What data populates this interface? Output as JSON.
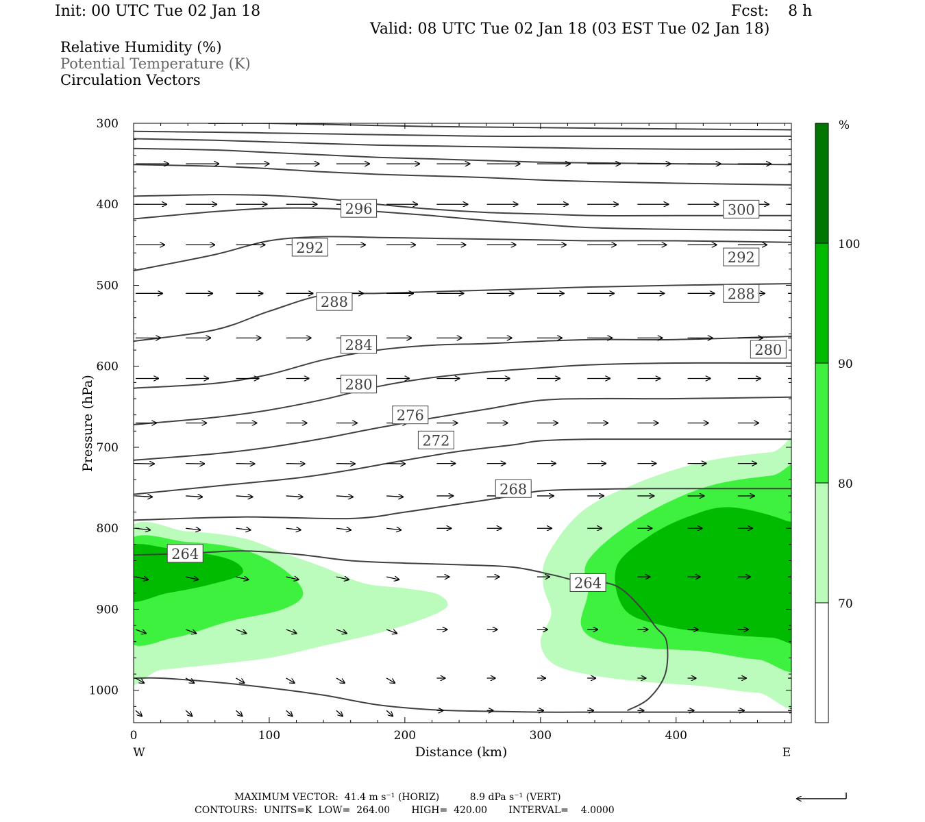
{
  "header": {
    "init": "Init: 00 UTC Tue 02 Jan 18",
    "fcst": "Fcst:    8 h",
    "valid": "Valid: 08 UTC Tue 02 Jan 18 (03 EST Tue 02 Jan 18)"
  },
  "fields": {
    "f1": "Relative Humidity (%)",
    "f2": "Potential Temperature (K)",
    "f3": "Circulation Vectors"
  },
  "footer": {
    "line1": "MAXIMUM VECTOR:  41.4 m s⁻¹ (HORIZ)          8.9 dPa s⁻¹ (VERT)",
    "line2": "CONTOURS:  UNITS=K  LOW=  264.00       HIGH=  420.00       INTERVAL=    4.0000"
  },
  "chart_data": {
    "type": "cross-section",
    "xlabel": "Distance (km)",
    "ylabel": "Pressure (hPa)",
    "xlim": [
      0,
      485
    ],
    "ylim": [
      1040,
      300
    ],
    "y_scale": "linear pressure (inverted)",
    "x_ticks": [
      0,
      100,
      200,
      300,
      400
    ],
    "y_ticks": [
      300,
      400,
      500,
      600,
      700,
      800,
      900,
      1000
    ],
    "x_end_labels": {
      "left": "W",
      "right": "E"
    },
    "colorbar": {
      "unit": "%",
      "levels": [
        70,
        80,
        90,
        100
      ],
      "colors": [
        "#ffffff",
        "#bbfbbb",
        "#3ef13e",
        "#00bb00",
        "#007700"
      ]
    },
    "theta_contours": [
      {
        "value": 264,
        "labels": [
          [
            38,
            831
          ],
          [
            335,
            867
          ]
        ],
        "points": [
          [
            0,
            833
          ],
          [
            40,
            831
          ],
          [
            80,
            828
          ],
          [
            120,
            832
          ],
          [
            160,
            840
          ],
          [
            200,
            843
          ],
          [
            240,
            845
          ],
          [
            280,
            848
          ],
          [
            310,
            858
          ],
          [
            330,
            866
          ],
          [
            350,
            868
          ],
          [
            362,
            878
          ],
          [
            375,
            900
          ],
          [
            385,
            922
          ],
          [
            393,
            940
          ],
          [
            392,
            980
          ],
          [
            380,
            1010
          ],
          [
            364,
            1025
          ]
        ]
      },
      {
        "value": 264,
        "points": [
          [
            0,
            985
          ],
          [
            20,
            985
          ],
          [
            60,
            990
          ],
          [
            100,
            997
          ],
          [
            140,
            1006
          ],
          [
            180,
            1018
          ],
          [
            220,
            1024
          ],
          [
            260,
            1026
          ],
          [
            300,
            1027
          ],
          [
            340,
            1027
          ],
          [
            380,
            1027
          ],
          [
            420,
            1027
          ],
          [
            485,
            1027
          ]
        ]
      },
      {
        "value": null,
        "points": [
          [
            0,
            790
          ],
          [
            80,
            786
          ],
          [
            160,
            788
          ],
          [
            200,
            780
          ],
          [
            240,
            770
          ],
          [
            280,
            760
          ],
          [
            300,
            754
          ],
          [
            330,
            752
          ],
          [
            380,
            751
          ],
          [
            420,
            751
          ],
          [
            485,
            751
          ]
        ]
      },
      {
        "value": 268,
        "labels": [
          [
            280,
            751
          ]
        ],
        "points": [
          [
            0,
            758
          ],
          [
            60,
            748
          ],
          [
            120,
            738
          ],
          [
            160,
            728
          ],
          [
            200,
            716
          ],
          [
            240,
            705
          ],
          [
            280,
            697
          ],
          [
            300,
            692
          ],
          [
            340,
            690
          ],
          [
            400,
            690
          ],
          [
            485,
            690
          ]
        ]
      },
      {
        "value": 272,
        "labels": [
          [
            223,
            691
          ]
        ],
        "points": [
          [
            0,
            716
          ],
          [
            60,
            708
          ],
          [
            100,
            700
          ],
          [
            140,
            689
          ],
          [
            180,
            676
          ],
          [
            220,
            664
          ],
          [
            260,
            653
          ],
          [
            300,
            642
          ],
          [
            340,
            640
          ],
          [
            400,
            640
          ],
          [
            485,
            638
          ]
        ]
      },
      {
        "value": 276,
        "labels": [
          [
            204,
            660
          ]
        ],
        "points": [
          [
            0,
            672
          ],
          [
            60,
            663
          ],
          [
            100,
            654
          ],
          [
            140,
            641
          ],
          [
            180,
            625
          ],
          [
            220,
            614
          ],
          [
            260,
            607
          ],
          [
            300,
            602
          ],
          [
            340,
            598
          ],
          [
            400,
            596
          ],
          [
            485,
            596
          ]
        ]
      },
      {
        "value": 280,
        "labels": [
          [
            166,
            622
          ],
          [
            468,
            579
          ]
        ],
        "points": [
          [
            0,
            627
          ],
          [
            60,
            621
          ],
          [
            100,
            610
          ],
          [
            140,
            592
          ],
          [
            180,
            580
          ],
          [
            220,
            574
          ],
          [
            260,
            572
          ],
          [
            300,
            569
          ],
          [
            340,
            567
          ],
          [
            400,
            567
          ],
          [
            485,
            563
          ]
        ]
      },
      {
        "value": 284,
        "labels": [
          [
            166,
            573
          ]
        ],
        "points": [
          [
            0,
            569
          ],
          [
            60,
            555
          ],
          [
            100,
            532
          ],
          [
            140,
            512
          ],
          [
            180,
            510
          ],
          [
            220,
            508
          ],
          [
            260,
            506
          ],
          [
            300,
            504
          ],
          [
            340,
            502
          ],
          [
            400,
            500
          ],
          [
            485,
            498
          ]
        ]
      },
      {
        "value": 288,
        "labels": [
          [
            148,
            520
          ],
          [
            448,
            510
          ]
        ],
        "points": [
          [
            0,
            482
          ],
          [
            60,
            462
          ],
          [
            100,
            445
          ],
          [
            140,
            440
          ],
          [
            180,
            441
          ],
          [
            220,
            442
          ],
          [
            260,
            443
          ],
          [
            300,
            444
          ],
          [
            340,
            445
          ],
          [
            400,
            445
          ],
          [
            485,
            447
          ]
        ]
      },
      {
        "value": 292,
        "labels": [
          [
            130,
            453
          ],
          [
            448,
            465
          ]
        ],
        "points": [
          [
            0,
            418
          ],
          [
            60,
            409
          ],
          [
            100,
            405
          ],
          [
            140,
            405
          ],
          [
            180,
            409
          ],
          [
            220,
            414
          ],
          [
            260,
            420
          ],
          [
            300,
            425
          ],
          [
            340,
            429
          ],
          [
            400,
            431
          ],
          [
            485,
            432
          ]
        ]
      },
      {
        "value": 296,
        "labels": [
          [
            166,
            405
          ]
        ],
        "points": [
          [
            0,
            390
          ],
          [
            60,
            388
          ],
          [
            100,
            389
          ],
          [
            140,
            393
          ],
          [
            180,
            400
          ],
          [
            220,
            406
          ],
          [
            260,
            410
          ],
          [
            300,
            412
          ],
          [
            340,
            414
          ],
          [
            400,
            414
          ],
          [
            485,
            414
          ]
        ]
      },
      {
        "value": 300,
        "labels": [
          [
            448,
            406
          ]
        ],
        "points": [
          [
            0,
            351
          ],
          [
            60,
            353
          ],
          [
            100,
            356
          ],
          [
            140,
            360
          ],
          [
            180,
            363
          ],
          [
            220,
            365
          ],
          [
            260,
            367
          ],
          [
            300,
            370
          ],
          [
            340,
            372
          ],
          [
            400,
            374
          ],
          [
            485,
            376
          ]
        ]
      },
      {
        "value": null,
        "points": [
          [
            0,
            331
          ],
          [
            60,
            333
          ],
          [
            100,
            336
          ],
          [
            140,
            339
          ],
          [
            180,
            342
          ],
          [
            220,
            344
          ],
          [
            260,
            346
          ],
          [
            300,
            348
          ],
          [
            340,
            349
          ],
          [
            400,
            350
          ],
          [
            485,
            351
          ]
        ]
      },
      {
        "value": null,
        "points": [
          [
            0,
            319
          ],
          [
            60,
            321
          ],
          [
            100,
            323
          ],
          [
            140,
            325
          ],
          [
            180,
            327
          ],
          [
            220,
            328
          ],
          [
            260,
            329
          ],
          [
            300,
            330
          ],
          [
            340,
            331
          ],
          [
            400,
            332
          ],
          [
            485,
            332
          ]
        ]
      },
      {
        "value": null,
        "points": [
          [
            0,
            310
          ],
          [
            60,
            311
          ],
          [
            100,
            312
          ],
          [
            140,
            313
          ],
          [
            180,
            314
          ],
          [
            220,
            315
          ],
          [
            260,
            316
          ],
          [
            300,
            316
          ],
          [
            340,
            316
          ],
          [
            400,
            316
          ],
          [
            485,
            316
          ]
        ]
      },
      {
        "value": null,
        "points": [
          [
            55,
            300
          ],
          [
            100,
            300
          ],
          [
            160,
            302
          ],
          [
            220,
            304
          ],
          [
            280,
            305
          ],
          [
            340,
            306
          ],
          [
            400,
            307
          ],
          [
            485,
            308
          ]
        ]
      }
    ],
    "vector_rows_hpa": [
      350,
      400,
      450,
      510,
      565,
      615,
      670,
      720,
      760,
      800,
      860,
      925,
      985,
      1025
    ],
    "vector_columns_km": [
      0,
      37,
      74,
      111,
      148,
      185,
      222,
      259,
      296,
      333,
      370,
      407,
      444,
      481
    ]
  }
}
